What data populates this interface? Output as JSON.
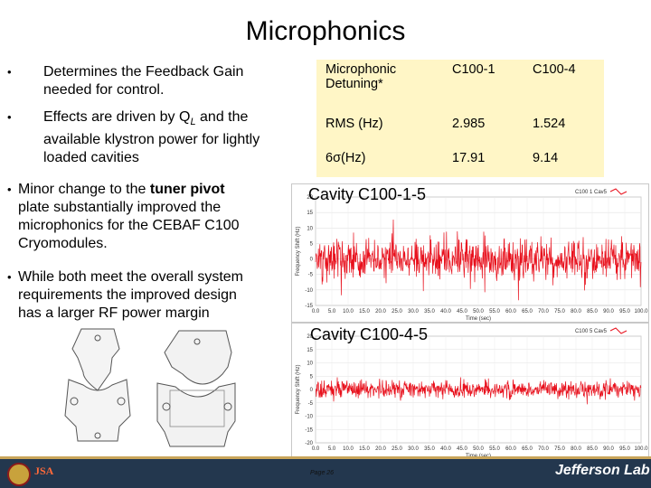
{
  "slide": {
    "title": "Microphonics",
    "bullets_top": [
      {
        "marker": "•",
        "text_line1": "Determines the Feedback Gain",
        "text_line2": "needed for control."
      },
      {
        "marker": "•",
        "pre": "Effects are driven by Q",
        "sub": "L",
        "post": " and the",
        "line2": "available klystron power for lightly",
        "line3": "loaded cavities"
      }
    ],
    "bullet2": {
      "marker": "•",
      "pre": "Minor change to the ",
      "bold": "tuner pivot",
      "line2": "plate substantially improved the",
      "line3": "microphonics for the CEBAF C100",
      "line4": "Cryomodules."
    },
    "bullet3": {
      "marker": "•",
      "line1": "While both meet the overall system",
      "line2": "requirements the improved design",
      "line3": "has a larger RF power margin"
    },
    "page_label": "Page 26",
    "footer_brand": "Jefferson Lab",
    "footer_logo_text": "JSA"
  },
  "table": {
    "header": [
      "Microphonic Detuning*",
      "C100-1",
      "C100-4"
    ],
    "rows": [
      [
        "RMS (Hz)",
        "2.985",
        "1.524"
      ],
      [
        "6σ(Hz)",
        "17.91",
        "9.14"
      ]
    ]
  },
  "charts_caption": [
    "Cavity C100-1-5",
    "Cavity C100-4-5"
  ],
  "chart_data": [
    {
      "type": "line",
      "title": "Cavity C100-1-5",
      "legend": "C100 1 Cav5",
      "xlabel": "Time (sec)",
      "ylabel": "Frequency Shift (Hz)",
      "xlim": [
        0,
        100
      ],
      "ylim": [
        -15,
        20
      ],
      "x_ticks": [
        "0.0",
        "5.0",
        "10.0",
        "15.0",
        "20.0",
        "25.0",
        "30.0",
        "35.0",
        "40.0",
        "45.0",
        "50.0",
        "55.0",
        "60.0",
        "65.0",
        "70.0",
        "75.0",
        "80.0",
        "85.0",
        "90.0",
        "95.0",
        "100.0"
      ],
      "y_ticks": [
        "20",
        "15",
        "10",
        "5",
        "0",
        "-5",
        "-10",
        "-15"
      ],
      "noise_rms": 2.985,
      "color": "#e8101c"
    },
    {
      "type": "line",
      "title": "Cavity C100-4-5",
      "legend": "C100 5 Cav5",
      "xlabel": "Time (sec)",
      "ylabel": "Frequency Shift (Hz)",
      "xlim": [
        0,
        100
      ],
      "ylim": [
        -20,
        20
      ],
      "x_ticks": [
        "0.0",
        "5.0",
        "10.0",
        "15.0",
        "20.0",
        "25.0",
        "30.0",
        "35.0",
        "40.0",
        "45.0",
        "50.0",
        "55.0",
        "60.0",
        "65.0",
        "70.0",
        "75.0",
        "80.0",
        "85.0",
        "90.0",
        "95.0",
        "100.0"
      ],
      "y_ticks": [
        "20",
        "15",
        "10",
        "5",
        "0",
        "-5",
        "-10",
        "-15",
        "-20"
      ],
      "noise_rms": 1.524,
      "color": "#e8101c"
    }
  ]
}
